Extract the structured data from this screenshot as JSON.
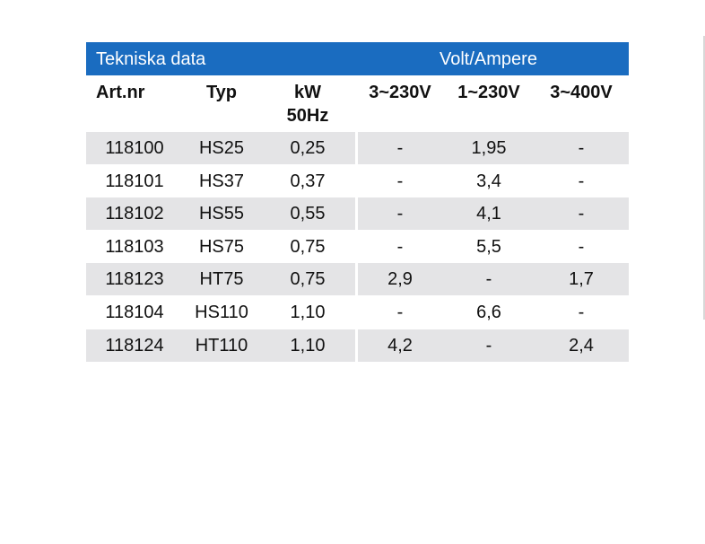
{
  "header": {
    "title": "Tekniska data",
    "group": "Volt/Ampere"
  },
  "table": {
    "columns": [
      "Art.nr",
      "Typ",
      "kW\n50Hz",
      "3~230V",
      "1~230V",
      "3~400V"
    ],
    "rows": [
      [
        "118100",
        "HS25",
        "0,25",
        "-",
        "1,95",
        "-"
      ],
      [
        "118101",
        "HS37",
        "0,37",
        "-",
        "3,4",
        "-"
      ],
      [
        "118102",
        "HS55",
        "0,55",
        "-",
        "4,1",
        "-"
      ],
      [
        "118103",
        "HS75",
        "0,75",
        "-",
        "5,5",
        "-"
      ],
      [
        "118123",
        "HT75",
        "0,75",
        "2,9",
        "-",
        "1,7"
      ],
      [
        "118104",
        "HS110",
        "1,10",
        "-",
        "6,6",
        "-"
      ],
      [
        "118124",
        "HT110",
        "1,10",
        "4,2",
        "-",
        "2,4"
      ]
    ]
  }
}
